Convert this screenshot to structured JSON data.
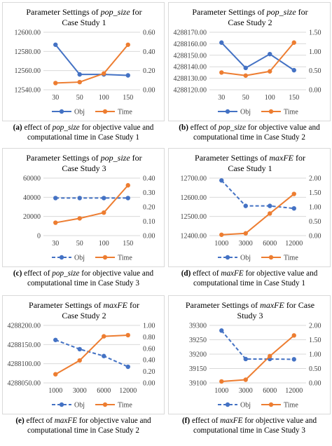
{
  "colors": {
    "obj": "#4472C4",
    "time": "#ED7D31",
    "grid": "#d9d9d9",
    "axis_text": "#404040"
  },
  "panels": [
    {
      "caption": {
        "label": "(a)",
        "pre": "effect of",
        "param": "pop_size",
        "post": "for objective value and",
        "line2": "computational time in Case Study 1"
      },
      "chart_data": {
        "type": "line",
        "title": {
          "pre": "Parameter Settings of ",
          "param": "pop_size",
          "post": " for",
          "line2": "Case Study 1"
        },
        "categories": [
          "30",
          "50",
          "100",
          "150"
        ],
        "series": [
          {
            "name": "Obj",
            "axis": "left",
            "dashed": false,
            "values": [
              12587,
              12556,
              12556,
              12555
            ]
          },
          {
            "name": "Time",
            "axis": "right",
            "dashed": false,
            "values": [
              0.07,
              0.08,
              0.17,
              0.47
            ]
          }
        ],
        "ylim": [
          12540,
          12600
        ],
        "yticks": [
          "12540.00",
          "12560.00",
          "12580.00",
          "12600.00"
        ],
        "y2lim": [
          0,
          0.6
        ],
        "y2ticks": [
          "0.00",
          "0.20",
          "0.40",
          "0.60"
        ],
        "grid": true,
        "legend": "bottom"
      }
    },
    {
      "caption": {
        "label": "(b)",
        "pre": "effect of",
        "param": "pop_size",
        "post": "for objective value and",
        "line2": "computational time in Case Study 2"
      },
      "chart_data": {
        "type": "line",
        "title": {
          "pre": "Parameter Settings of ",
          "param": "pop_size",
          "post": " for",
          "line2": "Case Study 2"
        },
        "categories": [
          "30",
          "50",
          "100",
          "150"
        ],
        "series": [
          {
            "name": "Obj",
            "axis": "left",
            "dashed": false,
            "values": [
              4288161,
              4288139,
              4288151,
              4288137
            ]
          },
          {
            "name": "Time",
            "axis": "right",
            "dashed": false,
            "values": [
              0.45,
              0.37,
              0.48,
              1.23
            ]
          }
        ],
        "ylim": [
          4288120,
          4288170
        ],
        "yticks": [
          "4288120.00",
          "4288130.00",
          "4288140.00",
          "4288150.00",
          "4288160.00",
          "4288170.00"
        ],
        "y2lim": [
          0,
          1.5
        ],
        "y2ticks": [
          "0.00",
          "0.50",
          "1.00",
          "1.50"
        ],
        "grid": true,
        "legend": "bottom"
      }
    },
    {
      "caption": {
        "label": "(c)",
        "pre": "effect of",
        "param": "pop_size",
        "post": "for objective value and",
        "line2": "computational time in Case Study 3"
      },
      "chart_data": {
        "type": "line",
        "title": {
          "pre": "Parameter Settings of ",
          "param": "pop_size",
          "post": " for",
          "line2": "Case Study 3"
        },
        "categories": [
          "30",
          "50",
          "100",
          "150"
        ],
        "series": [
          {
            "name": "Obj",
            "axis": "left",
            "dashed": true,
            "values": [
              39200,
              39200,
              39200,
              39200
            ]
          },
          {
            "name": "Time",
            "axis": "right",
            "dashed": false,
            "values": [
              0.09,
              0.12,
              0.16,
              0.35
            ]
          }
        ],
        "ylim": [
          0,
          60000
        ],
        "yticks": [
          "0",
          "20000",
          "40000",
          "60000"
        ],
        "y2lim": [
          0,
          0.4
        ],
        "y2ticks": [
          "0.00",
          "0.10",
          "0.20",
          "0.30",
          "0.40"
        ],
        "grid": true,
        "legend": "bottom"
      }
    },
    {
      "caption": {
        "label": "(d)",
        "pre": "effect of",
        "param": "maxFE",
        "post": "for objective value and",
        "line2": "computational time in Case Study 1"
      },
      "chart_data": {
        "type": "line",
        "title": {
          "pre": "Parameter Settings of ",
          "param": "maxFE",
          "post": " for",
          "line2": "Case Study 1"
        },
        "categories": [
          "1000",
          "3000",
          "6000",
          "12000"
        ],
        "series": [
          {
            "name": "Obj",
            "axis": "left",
            "dashed": true,
            "values": [
              12688,
              12555,
              12555,
              12542
            ]
          },
          {
            "name": "Time",
            "axis": "right",
            "dashed": false,
            "values": [
              0.03,
              0.08,
              0.77,
              1.45
            ]
          }
        ],
        "ylim": [
          12400,
          12700
        ],
        "yticks": [
          "12400.00",
          "12500.00",
          "12600.00",
          "12700.00"
        ],
        "y2lim": [
          0,
          2
        ],
        "y2ticks": [
          "0.00",
          "0.50",
          "1.00",
          "1.50",
          "2.00"
        ],
        "grid": true,
        "legend": "bottom"
      }
    },
    {
      "caption": {
        "label": "(e)",
        "pre": "effect of",
        "param": "maxFE",
        "post": "for objective value and",
        "line2": "computational time in Case Study 2"
      },
      "chart_data": {
        "type": "line",
        "title": {
          "pre": "Parameter Settings of ",
          "param": "maxFE",
          "post": " for",
          "line2": "Case Study 2"
        },
        "categories": [
          "1000",
          "3000",
          "6000",
          "12000"
        ],
        "series": [
          {
            "name": "Obj",
            "axis": "left",
            "dashed": true,
            "values": [
              4288162,
              4288138,
              4288120,
              4288092
            ]
          },
          {
            "name": "Time",
            "axis": "right",
            "dashed": false,
            "values": [
              0.15,
              0.39,
              0.81,
              0.83
            ]
          }
        ],
        "ylim": [
          4288050,
          4288200
        ],
        "yticks": [
          "4288050.00",
          "4288100.00",
          "4288150.00",
          "4288200.00"
        ],
        "y2lim": [
          0,
          1
        ],
        "y2ticks": [
          "0.00",
          "0.20",
          "0.40",
          "0.60",
          "0.80",
          "1.00"
        ],
        "grid": true,
        "legend": "bottom"
      }
    },
    {
      "caption": {
        "label": "(f)",
        "pre": "effect of",
        "param": "maxFE",
        "post": "for objective value and",
        "line2": "computational time in Case Study 3"
      },
      "chart_data": {
        "type": "line",
        "title": {
          "pre": "Parameter Settings of ",
          "param": "maxFE",
          "post": " for Case",
          "line2": "Study 3"
        },
        "categories": [
          "1000",
          "3000",
          "6000",
          "12000"
        ],
        "series": [
          {
            "name": "Obj",
            "axis": "left",
            "dashed": true,
            "values": [
              39282,
              39183,
              39183,
              39182
            ]
          },
          {
            "name": "Time",
            "axis": "right",
            "dashed": false,
            "values": [
              0.05,
              0.11,
              0.93,
              1.65
            ]
          }
        ],
        "ylim": [
          39100,
          39300
        ],
        "yticks": [
          "39100",
          "39150",
          "39200",
          "39250",
          "39300"
        ],
        "y2lim": [
          0,
          2
        ],
        "y2ticks": [
          "0.00",
          "0.50",
          "1.00",
          "1.50",
          "2.00"
        ],
        "grid": true,
        "legend": "bottom"
      }
    }
  ]
}
